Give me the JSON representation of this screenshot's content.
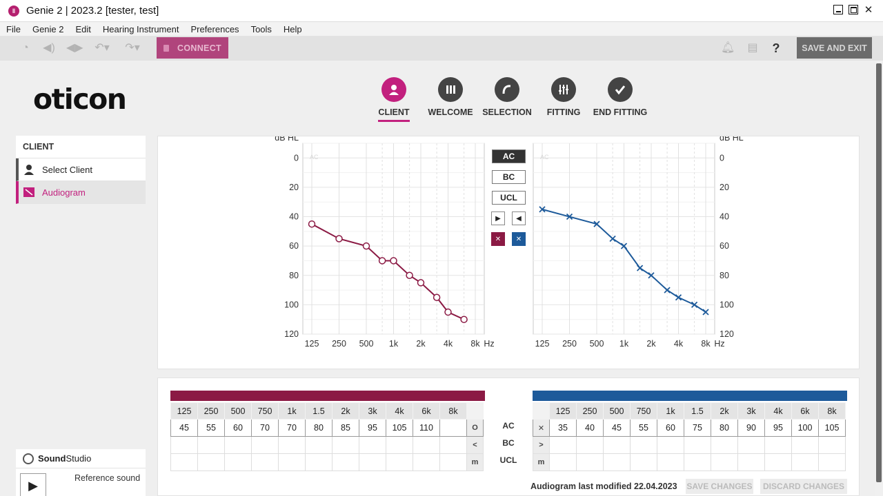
{
  "window": {
    "title": "Genie 2 | 2023.2 [tester, test]"
  },
  "menu": [
    "File",
    "Genie 2",
    "Edit",
    "Hearing Instrument",
    "Preferences",
    "Tools",
    "Help"
  ],
  "toolbar": {
    "connect_label": "CONNECT",
    "save_exit_label": "SAVE AND EXIT",
    "help_label": "?"
  },
  "brand": {
    "logo_text": "oticon"
  },
  "steps": [
    {
      "label": "CLIENT",
      "icon": "person-icon",
      "active": true
    },
    {
      "label": "WELCOME",
      "icon": "bars-icon",
      "active": false
    },
    {
      "label": "SELECTION",
      "icon": "hearing-aid-icon",
      "active": false
    },
    {
      "label": "FITTING",
      "icon": "sliders-icon",
      "active": false
    },
    {
      "label": "END FITTING",
      "icon": "check-icon",
      "active": false
    }
  ],
  "sidebar": {
    "header": "CLIENT",
    "items": [
      {
        "label": "Select Client",
        "icon": "person-icon"
      },
      {
        "label": "Audiogram",
        "icon": "audiogram-icon",
        "active": true
      }
    ]
  },
  "audiogram": {
    "y_label": "dB HL",
    "x_unit": "Hz",
    "y_ticks": [
      0,
      20,
      40,
      60,
      80,
      100,
      120
    ],
    "x_ticks": [
      "125",
      "250",
      "500",
      "1k",
      "2k",
      "4k",
      "8k"
    ],
    "watermark": "AC",
    "modes": [
      "AC",
      "BC",
      "UCL"
    ],
    "active_mode": "AC",
    "colors": {
      "right_ear": "#8b1a44",
      "left_ear": "#1d5a9a"
    }
  },
  "chart_data": [
    {
      "type": "line",
      "series": [
        {
          "name": "",
          "color": "#8b1a44",
          "marker": "circle",
          "x": [
            125,
            250,
            500,
            750,
            1000,
            1500,
            2000,
            3000,
            4000,
            6000
          ],
          "y": [
            45,
            55,
            60,
            70,
            70,
            80,
            85,
            95,
            105,
            110
          ]
        }
      ],
      "ylabel": "dB HL",
      "xlabel": "Hz",
      "ylim": [
        120,
        -10
      ],
      "xscale": "log",
      "grid": true
    },
    {
      "type": "line",
      "series": [
        {
          "name": "",
          "color": "#1d5a9a",
          "marker": "x",
          "x": [
            125,
            250,
            500,
            750,
            1000,
            1500,
            2000,
            3000,
            4000,
            6000,
            8000
          ],
          "y": [
            35,
            40,
            45,
            55,
            60,
            75,
            80,
            90,
            95,
            100,
            105
          ]
        }
      ],
      "ylabel": "dB HL",
      "xlabel": "Hz",
      "ylim": [
        120,
        -10
      ],
      "xscale": "log",
      "grid": true
    }
  ],
  "tables": {
    "freqs": [
      "125",
      "250",
      "500",
      "750",
      "1k",
      "1.5",
      "2k",
      "3k",
      "4k",
      "6k",
      "8k"
    ],
    "row_labels": [
      "AC",
      "BC",
      "UCL"
    ],
    "right": {
      "ac": [
        "45",
        "55",
        "60",
        "70",
        "70",
        "80",
        "85",
        "95",
        "105",
        "110",
        ""
      ],
      "symbols": [
        "O",
        "<",
        "m"
      ]
    },
    "left": {
      "ac": [
        "35",
        "40",
        "45",
        "55",
        "60",
        "75",
        "80",
        "90",
        "95",
        "100",
        "105"
      ],
      "symbols": [
        "✕",
        ">",
        "m"
      ]
    },
    "last_modified": "Audiogram last modified 22.04.2023",
    "save_changes": "SAVE CHANGES",
    "discard_changes": "DISCARD CHANGES"
  },
  "soundstudio": {
    "brand_bold": "Sound",
    "brand_rest": "Studio",
    "reference_label": "Reference sound"
  }
}
